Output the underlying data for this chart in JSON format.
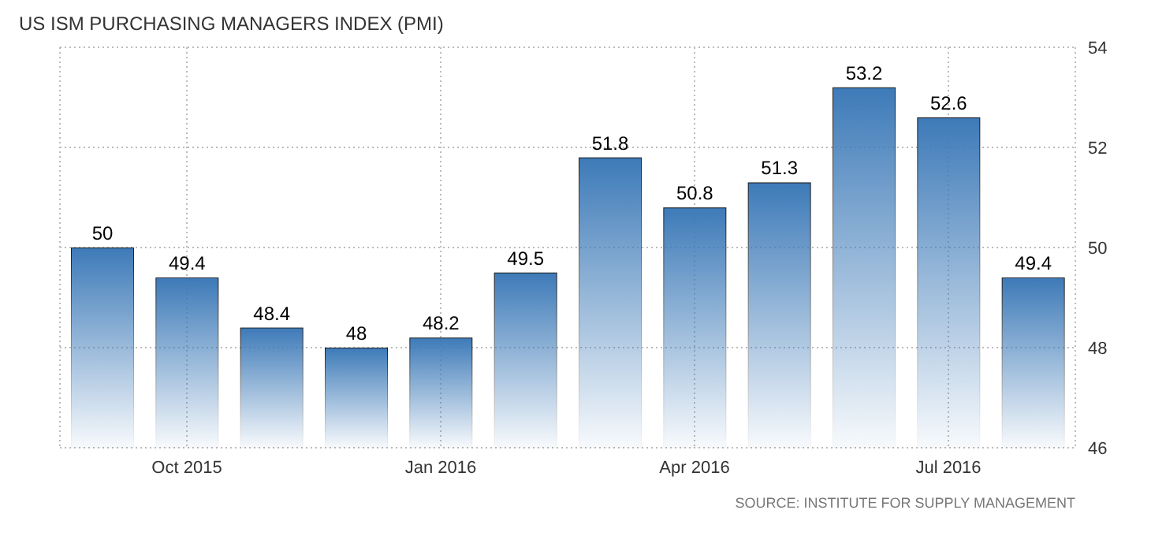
{
  "chart_data": {
    "type": "bar",
    "title": "US ISM PURCHASING MANAGERS INDEX (PMI)",
    "categories": [
      null,
      "Oct 2015",
      null,
      null,
      "Jan 2016",
      null,
      null,
      "Apr 2016",
      null,
      null,
      "Jul 2016",
      null
    ],
    "values": [
      50,
      49.4,
      48.4,
      48,
      48.2,
      49.5,
      51.8,
      50.8,
      51.3,
      53.2,
      52.6,
      49.4
    ],
    "color": "#3d7ab8",
    "ylim": [
      46,
      54
    ],
    "yticks": [
      46,
      48,
      50,
      52,
      54
    ],
    "grid": true,
    "data_labels": true,
    "annotations": [
      "SOURCE: INSTITUTE FOR SUPPLY MANAGEMENT"
    ]
  }
}
